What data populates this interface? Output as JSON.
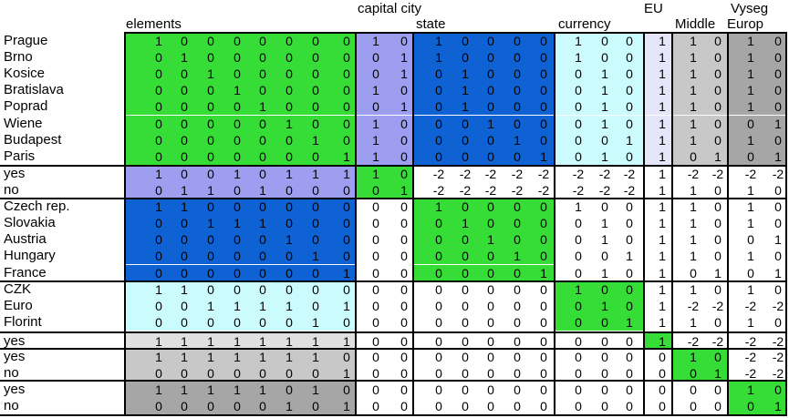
{
  "headers": {
    "elements": "elements",
    "capital_city": "capital city",
    "state": "state",
    "currency": "currency",
    "eu": "EU",
    "middle": "Middle",
    "vyseg": "Vyseg",
    "europ": "Europ"
  },
  "colors": {
    "green": "#37dd37",
    "lavender": "#9e9ef0",
    "blue": "#0e62d4",
    "lightcyan": "#ccfbfd",
    "palelavender": "#e6e6fa",
    "lightgray": "#e0e0e0",
    "gray": "#c8c8c8",
    "darkgray": "#a6a6a6",
    "white": "#ffffff"
  },
  "rows": [
    {
      "label": "Prague",
      "values": [
        "1",
        "0",
        "0",
        "0",
        "0",
        "0",
        "0",
        "0",
        "1",
        "0",
        "1",
        "0",
        "0",
        "0",
        "0",
        "1",
        "0",
        "0",
        "1",
        "1",
        "0",
        "1",
        "0"
      ],
      "fills": [
        "green",
        "lavender",
        "blue",
        "lightcyan",
        "palelavender",
        "gray",
        "darkgray"
      ]
    },
    {
      "label": "Brno",
      "values": [
        "0",
        "1",
        "0",
        "0",
        "0",
        "0",
        "0",
        "0",
        "0",
        "1",
        "1",
        "0",
        "0",
        "0",
        "0",
        "1",
        "0",
        "0",
        "1",
        "1",
        "0",
        "1",
        "0"
      ],
      "fills": [
        "green",
        "lavender",
        "blue",
        "lightcyan",
        "palelavender",
        "gray",
        "darkgray"
      ]
    },
    {
      "label": "Kosice",
      "values": [
        "0",
        "0",
        "1",
        "0",
        "0",
        "0",
        "0",
        "0",
        "0",
        "1",
        "0",
        "1",
        "0",
        "0",
        "0",
        "0",
        "1",
        "0",
        "1",
        "1",
        "0",
        "1",
        "0"
      ],
      "fills": [
        "green",
        "lavender",
        "blue",
        "lightcyan",
        "palelavender",
        "gray",
        "darkgray"
      ]
    },
    {
      "label": "Bratislava",
      "values": [
        "0",
        "0",
        "0",
        "1",
        "0",
        "0",
        "0",
        "0",
        "1",
        "0",
        "0",
        "1",
        "0",
        "0",
        "0",
        "0",
        "1",
        "0",
        "1",
        "1",
        "0",
        "1",
        "0"
      ],
      "fills": [
        "green",
        "lavender",
        "blue",
        "lightcyan",
        "palelavender",
        "gray",
        "darkgray"
      ]
    },
    {
      "label": "Poprad",
      "values": [
        "0",
        "0",
        "0",
        "0",
        "1",
        "0",
        "0",
        "0",
        "0",
        "1",
        "0",
        "1",
        "0",
        "0",
        "0",
        "0",
        "1",
        "0",
        "1",
        "1",
        "0",
        "1",
        "0"
      ],
      "fills": [
        "green",
        "lavender",
        "blue",
        "lightcyan",
        "palelavender",
        "gray",
        "darkgray"
      ]
    },
    {
      "label": "Wiene",
      "values": [
        "0",
        "0",
        "0",
        "0",
        "0",
        "1",
        "0",
        "0",
        "1",
        "0",
        "0",
        "0",
        "1",
        "0",
        "0",
        "0",
        "1",
        "0",
        "1",
        "1",
        "0",
        "0",
        "1"
      ],
      "fills": [
        "green",
        "lavender",
        "blue",
        "lightcyan",
        "palelavender",
        "gray",
        "darkgray"
      ]
    },
    {
      "label": "Budapest",
      "values": [
        "0",
        "0",
        "0",
        "0",
        "0",
        "0",
        "1",
        "0",
        "1",
        "0",
        "0",
        "0",
        "0",
        "1",
        "0",
        "0",
        "0",
        "1",
        "1",
        "1",
        "0",
        "1",
        "0"
      ],
      "fills": [
        "green",
        "lavender",
        "blue",
        "lightcyan",
        "palelavender",
        "gray",
        "darkgray"
      ]
    },
    {
      "label": "Paris",
      "values": [
        "0",
        "0",
        "0",
        "0",
        "0",
        "0",
        "0",
        "1",
        "1",
        "0",
        "0",
        "0",
        "0",
        "0",
        "1",
        "0",
        "1",
        "0",
        "1",
        "0",
        "1",
        "0",
        "1"
      ],
      "fills": [
        "green",
        "lavender",
        "blue",
        "lightcyan",
        "palelavender",
        "gray",
        "darkgray"
      ]
    },
    {
      "label": "yes",
      "values": [
        "1",
        "0",
        "0",
        "1",
        "0",
        "1",
        "1",
        "1",
        "1",
        "0",
        "-2",
        "-2",
        "-2",
        "-2",
        "-2",
        "-2",
        "-2",
        "-2",
        "1",
        "-2",
        "-2",
        "-2",
        "-2"
      ],
      "fills": [
        "lavender",
        "green",
        "white",
        "white",
        "white",
        "white",
        "white"
      ]
    },
    {
      "label": "no",
      "values": [
        "0",
        "1",
        "1",
        "0",
        "1",
        "0",
        "0",
        "0",
        "0",
        "1",
        "-2",
        "-2",
        "-2",
        "-2",
        "-2",
        "-2",
        "-2",
        "-2",
        "1",
        "1",
        "0",
        "1",
        "0"
      ],
      "fills": [
        "lavender",
        "green",
        "white",
        "white",
        "white",
        "white",
        "white"
      ]
    },
    {
      "label": "Czech rep.",
      "values": [
        "1",
        "1",
        "0",
        "0",
        "0",
        "0",
        "0",
        "0",
        "0",
        "0",
        "1",
        "0",
        "0",
        "0",
        "0",
        "1",
        "0",
        "0",
        "1",
        "1",
        "0",
        "1",
        "0"
      ],
      "fills": [
        "blue",
        "white",
        "green",
        "white",
        "white",
        "white",
        "white"
      ]
    },
    {
      "label": "Slovakia",
      "values": [
        "0",
        "0",
        "1",
        "1",
        "1",
        "0",
        "0",
        "0",
        "0",
        "0",
        "0",
        "1",
        "0",
        "0",
        "0",
        "0",
        "1",
        "0",
        "1",
        "1",
        "0",
        "1",
        "0"
      ],
      "fills": [
        "blue",
        "white",
        "green",
        "white",
        "white",
        "white",
        "white"
      ]
    },
    {
      "label": "Austria",
      "values": [
        "0",
        "0",
        "0",
        "0",
        "0",
        "1",
        "0",
        "0",
        "0",
        "0",
        "0",
        "0",
        "1",
        "0",
        "0",
        "0",
        "1",
        "0",
        "1",
        "1",
        "0",
        "0",
        "1"
      ],
      "fills": [
        "blue",
        "white",
        "green",
        "white",
        "white",
        "white",
        "white"
      ]
    },
    {
      "label": "Hungary",
      "values": [
        "0",
        "0",
        "0",
        "0",
        "0",
        "0",
        "1",
        "0",
        "0",
        "0",
        "0",
        "0",
        "0",
        "1",
        "0",
        "0",
        "0",
        "1",
        "1",
        "1",
        "0",
        "1",
        "0"
      ],
      "fills": [
        "blue",
        "white",
        "green",
        "white",
        "white",
        "white",
        "white"
      ]
    },
    {
      "label": "France",
      "values": [
        "0",
        "0",
        "0",
        "0",
        "0",
        "0",
        "0",
        "1",
        "0",
        "0",
        "0",
        "0",
        "0",
        "0",
        "1",
        "0",
        "1",
        "0",
        "1",
        "0",
        "1",
        "0",
        "1"
      ],
      "fills": [
        "blue",
        "white",
        "green",
        "white",
        "white",
        "white",
        "white"
      ]
    },
    {
      "label": "CZK",
      "values": [
        "1",
        "1",
        "0",
        "0",
        "0",
        "0",
        "0",
        "0",
        "0",
        "0",
        "0",
        "0",
        "0",
        "0",
        "0",
        "1",
        "0",
        "0",
        "1",
        "1",
        "0",
        "1",
        "0"
      ],
      "fills": [
        "lightcyan",
        "white",
        "white",
        "green",
        "white",
        "white",
        "white"
      ]
    },
    {
      "label": "Euro",
      "values": [
        "0",
        "0",
        "1",
        "1",
        "1",
        "1",
        "0",
        "1",
        "0",
        "0",
        "0",
        "0",
        "0",
        "0",
        "0",
        "0",
        "1",
        "0",
        "1",
        "-2",
        "-2",
        "-2",
        "-2"
      ],
      "fills": [
        "lightcyan",
        "white",
        "white",
        "green",
        "white",
        "white",
        "white"
      ]
    },
    {
      "label": "Florint",
      "values": [
        "0",
        "0",
        "0",
        "0",
        "0",
        "0",
        "1",
        "0",
        "0",
        "0",
        "0",
        "0",
        "0",
        "0",
        "0",
        "0",
        "0",
        "1",
        "1",
        "1",
        "0",
        "1",
        "0"
      ],
      "fills": [
        "lightcyan",
        "white",
        "white",
        "green",
        "white",
        "white",
        "white"
      ]
    },
    {
      "label": "yes",
      "values": [
        "1",
        "1",
        "1",
        "1",
        "1",
        "1",
        "1",
        "1",
        "0",
        "0",
        "0",
        "0",
        "0",
        "0",
        "0",
        "0",
        "0",
        "0",
        "1",
        "-2",
        "-2",
        "-2",
        "-2"
      ],
      "fills": [
        "lightgray",
        "white",
        "white",
        "white",
        "green",
        "white",
        "white"
      ]
    },
    {
      "label": "yes",
      "values": [
        "1",
        "1",
        "1",
        "1",
        "1",
        "1",
        "1",
        "0",
        "0",
        "0",
        "0",
        "0",
        "0",
        "0",
        "0",
        "0",
        "0",
        "0",
        "0",
        "1",
        "0",
        "-2",
        "-2"
      ],
      "fills": [
        "gray",
        "white",
        "white",
        "white",
        "white",
        "green",
        "white"
      ]
    },
    {
      "label": "no",
      "values": [
        "0",
        "0",
        "0",
        "0",
        "0",
        "0",
        "0",
        "1",
        "0",
        "0",
        "0",
        "0",
        "0",
        "0",
        "0",
        "0",
        "0",
        "0",
        "0",
        "0",
        "1",
        "-2",
        "-2"
      ],
      "fills": [
        "gray",
        "white",
        "white",
        "white",
        "white",
        "green",
        "white"
      ]
    },
    {
      "label": "yes",
      "values": [
        "1",
        "1",
        "1",
        "1",
        "1",
        "0",
        "1",
        "0",
        "0",
        "0",
        "0",
        "0",
        "0",
        "0",
        "0",
        "0",
        "0",
        "0",
        "0",
        "0",
        "0",
        "1",
        "0"
      ],
      "fills": [
        "darkgray",
        "white",
        "white",
        "white",
        "white",
        "white",
        "green"
      ]
    },
    {
      "label": "no",
      "values": [
        "0",
        "0",
        "0",
        "0",
        "0",
        "1",
        "0",
        "1",
        "0",
        "0",
        "0",
        "0",
        "0",
        "0",
        "0",
        "0",
        "0",
        "0",
        "0",
        "0",
        "0",
        "0",
        "1"
      ],
      "fills": [
        "darkgray",
        "white",
        "white",
        "white",
        "white",
        "white",
        "green"
      ]
    }
  ]
}
